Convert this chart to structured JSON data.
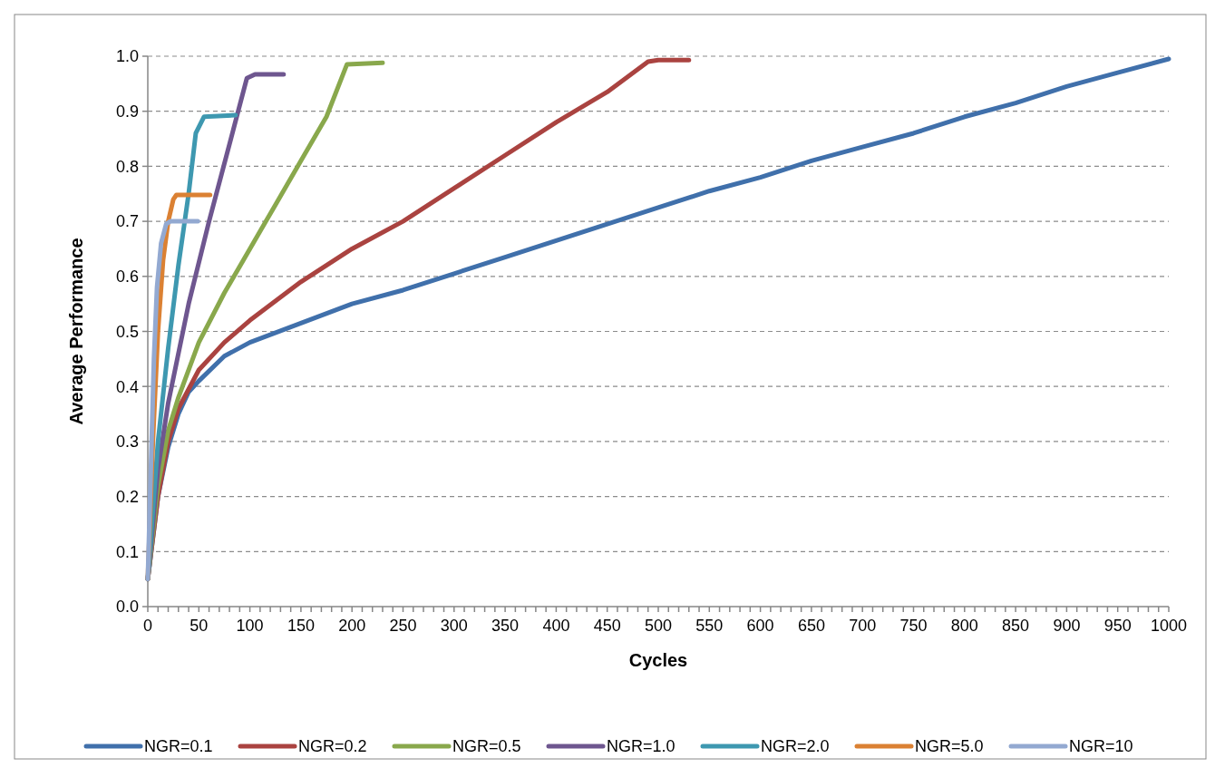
{
  "chart_data": {
    "type": "line",
    "xlabel": "Cycles",
    "ylabel": "Average Performance",
    "xlim": [
      0,
      1000
    ],
    "xticks": [
      0,
      50,
      100,
      150,
      200,
      250,
      300,
      350,
      400,
      450,
      500,
      550,
      600,
      650,
      700,
      750,
      800,
      850,
      900,
      950,
      1000
    ],
    "ylim": [
      0,
      1
    ],
    "yticks": [
      {
        "value": 0,
        "label": "0.0"
      },
      {
        "value": 0.1,
        "label": "0.1"
      },
      {
        "value": 0.2,
        "label": "0.2"
      },
      {
        "value": 0.3,
        "label": "0.3"
      },
      {
        "value": 0.4,
        "label": "0.4"
      },
      {
        "value": 0.5,
        "label": "0.5"
      },
      {
        "value": 0.6,
        "label": "0.6"
      },
      {
        "value": 0.7,
        "label": "0.7"
      },
      {
        "value": 0.8,
        "label": "0.8"
      },
      {
        "value": 0.9,
        "label": "0.9"
      },
      {
        "value": 1,
        "label": "1.0"
      }
    ],
    "grid": "y",
    "legend": "bottom",
    "line_style": "solid",
    "series": [
      {
        "name": "NGR=0.1",
        "color": "#4070ab",
        "x": [
          0,
          10,
          20,
          30,
          40,
          50,
          75,
          100,
          150,
          200,
          250,
          300,
          350,
          400,
          450,
          500,
          550,
          600,
          650,
          700,
          750,
          800,
          850,
          900,
          950,
          1000
        ],
        "values": [
          0.05,
          0.2,
          0.29,
          0.35,
          0.39,
          0.41,
          0.455,
          0.48,
          0.515,
          0.55,
          0.575,
          0.605,
          0.635,
          0.665,
          0.695,
          0.725,
          0.755,
          0.78,
          0.81,
          0.835,
          0.86,
          0.89,
          0.915,
          0.945,
          0.97,
          0.995
        ]
      },
      {
        "name": "NGR=0.2",
        "color": "#aa4340",
        "x": [
          0,
          10,
          20,
          30,
          50,
          75,
          100,
          150,
          200,
          250,
          300,
          350,
          400,
          450,
          490,
          500,
          530
        ],
        "values": [
          0.05,
          0.2,
          0.3,
          0.36,
          0.43,
          0.48,
          0.52,
          0.59,
          0.65,
          0.7,
          0.76,
          0.82,
          0.88,
          0.935,
          0.99,
          0.993,
          0.993
        ]
      },
      {
        "name": "NGR=0.5",
        "color": "#89a84c",
        "x": [
          0,
          10,
          20,
          30,
          50,
          75,
          100,
          125,
          150,
          175,
          195,
          230
        ],
        "values": [
          0.05,
          0.22,
          0.32,
          0.38,
          0.48,
          0.57,
          0.65,
          0.73,
          0.81,
          0.89,
          0.985,
          0.988
        ]
      },
      {
        "name": "NGR=1.0",
        "color": "#6e568f",
        "x": [
          0,
          10,
          20,
          40,
          60,
          80,
          97,
          105,
          133
        ],
        "values": [
          0.05,
          0.25,
          0.37,
          0.55,
          0.7,
          0.84,
          0.96,
          0.967,
          0.967
        ]
      },
      {
        "name": "NGR=2.0",
        "color": "#3e98b0",
        "x": [
          0,
          10,
          20,
          30,
          40,
          47,
          55,
          86
        ],
        "values": [
          0.05,
          0.3,
          0.47,
          0.62,
          0.75,
          0.86,
          0.89,
          0.893
        ]
      },
      {
        "name": "NGR=5.0",
        "color": "#db8133",
        "x": [
          0,
          5,
          10,
          15,
          20,
          25,
          28,
          61
        ],
        "values": [
          0.05,
          0.3,
          0.5,
          0.63,
          0.7,
          0.74,
          0.748,
          0.748
        ]
      },
      {
        "name": "NGR=10",
        "color": "#93a9d1",
        "x": [
          0,
          3,
          6,
          9,
          13,
          18,
          22,
          49
        ],
        "values": [
          0.05,
          0.25,
          0.45,
          0.58,
          0.66,
          0.695,
          0.7,
          0.7
        ]
      }
    ]
  }
}
